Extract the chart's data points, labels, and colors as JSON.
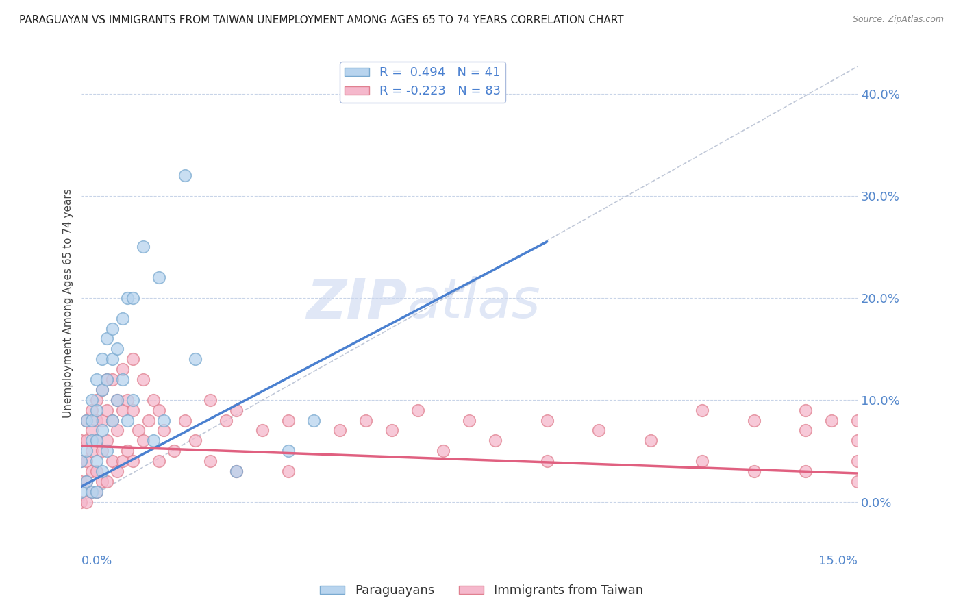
{
  "title": "PARAGUAYAN VS IMMIGRANTS FROM TAIWAN UNEMPLOYMENT AMONG AGES 65 TO 74 YEARS CORRELATION CHART",
  "source": "Source: ZipAtlas.com",
  "ylabel": "Unemployment Among Ages 65 to 74 years",
  "ytick_values": [
    0.0,
    0.1,
    0.2,
    0.3,
    0.4
  ],
  "xmin": 0.0,
  "xmax": 0.15,
  "ymin": -0.05,
  "ymax": 0.44,
  "legend_blue_label": "R =  0.494   N = 41",
  "legend_pink_label": "R = -0.223   N = 83",
  "legend_bottom_blue": "Paraguayans",
  "legend_bottom_pink": "Immigrants from Taiwan",
  "blue_color": "#a8c8e8",
  "pink_color": "#f0a8c0",
  "blue_fill_color": "#b8d4ee",
  "pink_fill_color": "#f5b8cc",
  "blue_edge_color": "#7aaad0",
  "pink_edge_color": "#e08090",
  "blue_line_color": "#4a80d0",
  "pink_line_color": "#e06080",
  "dash_line_color": "#c0c8d8",
  "watermark_color": "#ccd8f0",
  "background_color": "#ffffff",
  "grid_color": "#c8d4e8",
  "title_color": "#222222",
  "source_color": "#888888",
  "axis_label_color": "#5588cc",
  "ylabel_color": "#444444",
  "blue_scatter_x": [
    0.0,
    0.0,
    0.001,
    0.001,
    0.001,
    0.002,
    0.002,
    0.002,
    0.002,
    0.003,
    0.003,
    0.003,
    0.003,
    0.003,
    0.004,
    0.004,
    0.004,
    0.004,
    0.005,
    0.005,
    0.005,
    0.006,
    0.006,
    0.006,
    0.007,
    0.007,
    0.008,
    0.008,
    0.009,
    0.009,
    0.01,
    0.01,
    0.012,
    0.014,
    0.015,
    0.016,
    0.02,
    0.022,
    0.03,
    0.04,
    0.045
  ],
  "blue_scatter_y": [
    0.04,
    0.01,
    0.08,
    0.05,
    0.02,
    0.1,
    0.08,
    0.06,
    0.01,
    0.12,
    0.09,
    0.06,
    0.04,
    0.01,
    0.14,
    0.11,
    0.07,
    0.03,
    0.16,
    0.12,
    0.05,
    0.17,
    0.14,
    0.08,
    0.15,
    0.1,
    0.18,
    0.12,
    0.2,
    0.08,
    0.2,
    0.1,
    0.25,
    0.06,
    0.22,
    0.08,
    0.32,
    0.14,
    0.03,
    0.05,
    0.08
  ],
  "pink_scatter_x": [
    0.0,
    0.0,
    0.0,
    0.0,
    0.001,
    0.001,
    0.001,
    0.001,
    0.001,
    0.002,
    0.002,
    0.002,
    0.002,
    0.002,
    0.003,
    0.003,
    0.003,
    0.003,
    0.003,
    0.004,
    0.004,
    0.004,
    0.004,
    0.005,
    0.005,
    0.005,
    0.005,
    0.006,
    0.006,
    0.006,
    0.007,
    0.007,
    0.007,
    0.008,
    0.008,
    0.008,
    0.009,
    0.009,
    0.01,
    0.01,
    0.01,
    0.011,
    0.012,
    0.012,
    0.013,
    0.014,
    0.015,
    0.015,
    0.016,
    0.018,
    0.02,
    0.022,
    0.025,
    0.025,
    0.028,
    0.03,
    0.03,
    0.035,
    0.04,
    0.04,
    0.05,
    0.055,
    0.06,
    0.065,
    0.07,
    0.075,
    0.08,
    0.09,
    0.09,
    0.1,
    0.11,
    0.12,
    0.12,
    0.13,
    0.13,
    0.14,
    0.14,
    0.14,
    0.145,
    0.15,
    0.15,
    0.15,
    0.15
  ],
  "pink_scatter_y": [
    0.06,
    0.04,
    0.02,
    0.0,
    0.08,
    0.06,
    0.04,
    0.02,
    0.0,
    0.09,
    0.07,
    0.05,
    0.03,
    0.01,
    0.1,
    0.08,
    0.06,
    0.03,
    0.01,
    0.11,
    0.08,
    0.05,
    0.02,
    0.12,
    0.09,
    0.06,
    0.02,
    0.12,
    0.08,
    0.04,
    0.1,
    0.07,
    0.03,
    0.13,
    0.09,
    0.04,
    0.1,
    0.05,
    0.14,
    0.09,
    0.04,
    0.07,
    0.12,
    0.06,
    0.08,
    0.1,
    0.09,
    0.04,
    0.07,
    0.05,
    0.08,
    0.06,
    0.1,
    0.04,
    0.08,
    0.09,
    0.03,
    0.07,
    0.08,
    0.03,
    0.07,
    0.08,
    0.07,
    0.09,
    0.05,
    0.08,
    0.06,
    0.08,
    0.04,
    0.07,
    0.06,
    0.09,
    0.04,
    0.08,
    0.03,
    0.09,
    0.07,
    0.03,
    0.08,
    0.08,
    0.06,
    0.04,
    0.02
  ],
  "blue_trendline_x": [
    0.0,
    0.09
  ],
  "blue_trendline_y": [
    0.015,
    0.255
  ],
  "pink_trendline_x": [
    0.0,
    0.15
  ],
  "pink_trendline_y": [
    0.055,
    0.028
  ]
}
